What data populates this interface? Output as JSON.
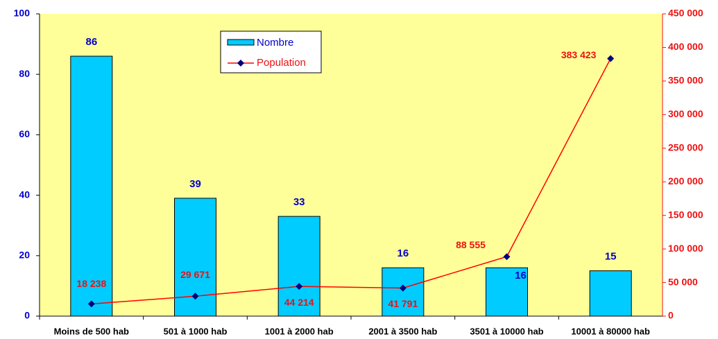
{
  "chart_data": {
    "type": "bar",
    "categories": [
      "Moins de 500 hab",
      "501 à 1000 hab",
      "1001 à 2000 hab",
      "2001 à 3500 hab",
      "3501 à 10000 hab",
      "10001 à 80000 hab"
    ],
    "series": [
      {
        "name": "Nombre",
        "color": "#00ccff",
        "label_color": "#0000cc",
        "values": [
          86,
          39,
          33,
          16,
          16,
          15
        ]
      },
      {
        "name": "Population",
        "type": "line",
        "axis": "y2",
        "color": "#ff0000",
        "marker_color": "#000080",
        "label_color": "#ee1111",
        "values": [
          18238,
          29671,
          44214,
          41791,
          88555,
          383423
        ],
        "value_labels": [
          "18 238",
          "29 671",
          "44 214",
          "41 791",
          "88 555",
          "383 423"
        ]
      }
    ],
    "ylim": [
      0,
      100
    ],
    "yticks": [
      0,
      20,
      40,
      60,
      80,
      100
    ],
    "y2lim": [
      0,
      450000
    ],
    "y2ticks": [
      0,
      {
        "value": 50000,
        "label": "50 000"
      },
      {
        "value": 100000,
        "label": "100 000"
      },
      {
        "value": 150000,
        "label": "150 000"
      },
      {
        "value": 200000,
        "label": "200 000"
      },
      {
        "value": 250000,
        "label": "250 000"
      },
      {
        "value": 300000,
        "label": "300 000"
      },
      {
        "value": 350000,
        "label": "350 000"
      },
      {
        "value": 400000,
        "label": "400 000"
      },
      {
        "value": 450000,
        "label": "450 000"
      }
    ],
    "background": "#ffff99",
    "y_color": "#0000cc",
    "y2_color": "#ee1111"
  }
}
